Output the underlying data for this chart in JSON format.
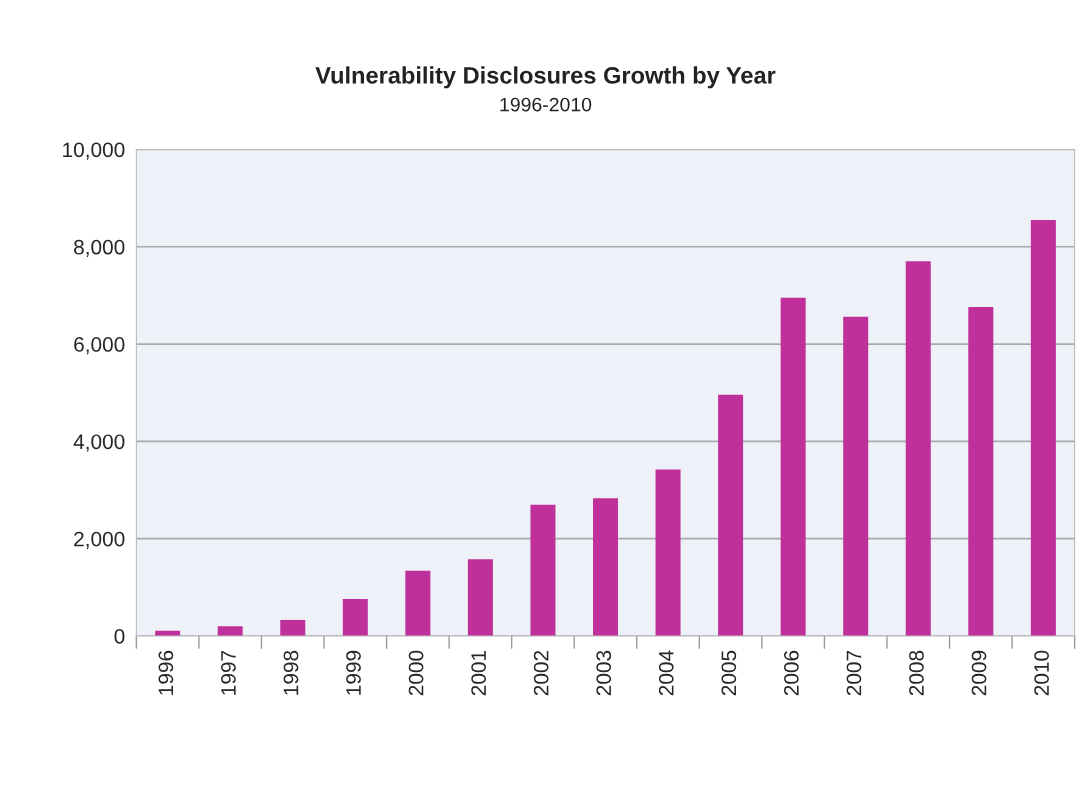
{
  "chart_data": {
    "type": "bar",
    "title": "Vulnerability Disclosures Growth by Year",
    "subtitle": "1996-2010",
    "categories": [
      "1996",
      "1997",
      "1998",
      "1999",
      "2000",
      "2001",
      "2002",
      "2003",
      "2004",
      "2005",
      "2006",
      "2007",
      "2008",
      "2009",
      "2010"
    ],
    "values": [
      110,
      200,
      330,
      760,
      1340,
      1580,
      2700,
      2830,
      3420,
      4960,
      6950,
      6560,
      7700,
      6760,
      8550
    ],
    "color": "#c0309a",
    "ylim": [
      0,
      10000
    ],
    "yticks": [
      {
        "value": 0,
        "label": "0"
      },
      {
        "value": 2000,
        "label": "2,000"
      },
      {
        "value": 4000,
        "label": "4,000"
      },
      {
        "value": 6000,
        "label": "6,000"
      },
      {
        "value": 8000,
        "label": "8,000"
      },
      {
        "value": 10000,
        "label": "10,000"
      }
    ],
    "grid": "y"
  }
}
